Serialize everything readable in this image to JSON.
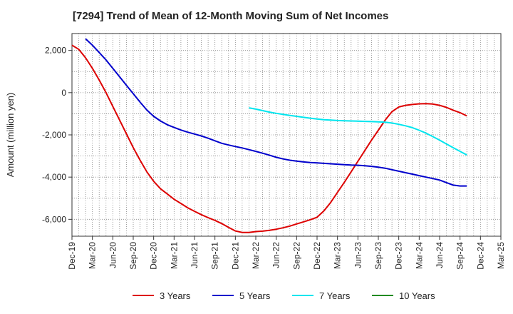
{
  "chart_data": {
    "type": "line",
    "title": "[7294]  Trend of Mean of 12-Month Moving Sum of Net Incomes",
    "xlabel": "",
    "ylabel": "Amount (million yen)",
    "x_range": [
      "2019-12",
      "2025-03"
    ],
    "ylim": [
      -6800,
      2800
    ],
    "y_ticks": [
      {
        "value": 2000,
        "label": "2,000"
      },
      {
        "value": 0,
        "label": "0"
      },
      {
        "value": -2000,
        "label": "-2,000"
      },
      {
        "value": -4000,
        "label": "-4,000"
      },
      {
        "value": -6000,
        "label": "-6,000"
      }
    ],
    "x_ticks": [
      {
        "date": "2019-12",
        "label": "Dec-19"
      },
      {
        "date": "2020-03",
        "label": "Mar-20"
      },
      {
        "date": "2020-06",
        "label": "Jun-20"
      },
      {
        "date": "2020-09",
        "label": "Sep-20"
      },
      {
        "date": "2020-12",
        "label": "Dec-20"
      },
      {
        "date": "2021-03",
        "label": "Mar-21"
      },
      {
        "date": "2021-06",
        "label": "Jun-21"
      },
      {
        "date": "2021-09",
        "label": "Sep-21"
      },
      {
        "date": "2021-12",
        "label": "Dec-21"
      },
      {
        "date": "2022-03",
        "label": "Mar-22"
      },
      {
        "date": "2022-06",
        "label": "Jun-22"
      },
      {
        "date": "2022-09",
        "label": "Sep-22"
      },
      {
        "date": "2022-12",
        "label": "Dec-22"
      },
      {
        "date": "2023-03",
        "label": "Mar-23"
      },
      {
        "date": "2023-06",
        "label": "Jun-23"
      },
      {
        "date": "2023-09",
        "label": "Sep-23"
      },
      {
        "date": "2023-12",
        "label": "Dec-23"
      },
      {
        "date": "2024-03",
        "label": "Mar-24"
      },
      {
        "date": "2024-06",
        "label": "Jun-24"
      },
      {
        "date": "2024-09",
        "label": "Sep-24"
      },
      {
        "date": "2024-12",
        "label": "Dec-24"
      },
      {
        "date": "2025-03",
        "label": "Mar-25"
      }
    ],
    "grid": true,
    "legend_position": "bottom",
    "series": [
      {
        "name": "3 Years",
        "color": "#dd0000",
        "points": [
          [
            "2019-12",
            2250
          ],
          [
            "2020-01",
            2050
          ],
          [
            "2020-02",
            1650
          ],
          [
            "2020-03",
            1150
          ],
          [
            "2020-04",
            600
          ],
          [
            "2020-05",
            0
          ],
          [
            "2020-06",
            -650
          ],
          [
            "2020-07",
            -1300
          ],
          [
            "2020-08",
            -1950
          ],
          [
            "2020-09",
            -2600
          ],
          [
            "2020-10",
            -3200
          ],
          [
            "2020-11",
            -3750
          ],
          [
            "2020-12",
            -4200
          ],
          [
            "2021-01",
            -4550
          ],
          [
            "2021-02",
            -4800
          ],
          [
            "2021-03",
            -5050
          ],
          [
            "2021-04",
            -5250
          ],
          [
            "2021-05",
            -5450
          ],
          [
            "2021-06",
            -5620
          ],
          [
            "2021-07",
            -5780
          ],
          [
            "2021-08",
            -5920
          ],
          [
            "2021-09",
            -6050
          ],
          [
            "2021-10",
            -6200
          ],
          [
            "2021-11",
            -6380
          ],
          [
            "2021-12",
            -6550
          ],
          [
            "2022-01",
            -6620
          ],
          [
            "2022-02",
            -6620
          ],
          [
            "2022-03",
            -6580
          ],
          [
            "2022-04",
            -6560
          ],
          [
            "2022-05",
            -6520
          ],
          [
            "2022-06",
            -6470
          ],
          [
            "2022-07",
            -6400
          ],
          [
            "2022-08",
            -6320
          ],
          [
            "2022-09",
            -6220
          ],
          [
            "2022-10",
            -6120
          ],
          [
            "2022-11",
            -6020
          ],
          [
            "2022-12",
            -5900
          ],
          [
            "2023-01",
            -5600
          ],
          [
            "2023-02",
            -5200
          ],
          [
            "2023-03",
            -4720
          ],
          [
            "2023-04",
            -4250
          ],
          [
            "2023-05",
            -3750
          ],
          [
            "2023-06",
            -3250
          ],
          [
            "2023-07",
            -2750
          ],
          [
            "2023-08",
            -2250
          ],
          [
            "2023-09",
            -1780
          ],
          [
            "2023-10",
            -1300
          ],
          [
            "2023-11",
            -900
          ],
          [
            "2023-12",
            -680
          ],
          [
            "2024-01",
            -600
          ],
          [
            "2024-02",
            -560
          ],
          [
            "2024-03",
            -530
          ],
          [
            "2024-04",
            -520
          ],
          [
            "2024-05",
            -540
          ],
          [
            "2024-06",
            -600
          ],
          [
            "2024-07",
            -700
          ],
          [
            "2024-08",
            -830
          ],
          [
            "2024-09",
            -950
          ],
          [
            "2024-10",
            -1100
          ]
        ]
      },
      {
        "name": "5 Years",
        "color": "#0000cc",
        "points": [
          [
            "2020-02",
            2550
          ],
          [
            "2020-03",
            2250
          ],
          [
            "2020-04",
            1900
          ],
          [
            "2020-05",
            1550
          ],
          [
            "2020-06",
            1150
          ],
          [
            "2020-07",
            750
          ],
          [
            "2020-08",
            350
          ],
          [
            "2020-09",
            -50
          ],
          [
            "2020-10",
            -450
          ],
          [
            "2020-11",
            -820
          ],
          [
            "2020-12",
            -1120
          ],
          [
            "2021-01",
            -1340
          ],
          [
            "2021-02",
            -1520
          ],
          [
            "2021-03",
            -1650
          ],
          [
            "2021-04",
            -1770
          ],
          [
            "2021-05",
            -1870
          ],
          [
            "2021-06",
            -1960
          ],
          [
            "2021-07",
            -2050
          ],
          [
            "2021-08",
            -2160
          ],
          [
            "2021-09",
            -2280
          ],
          [
            "2021-10",
            -2400
          ],
          [
            "2021-11",
            -2480
          ],
          [
            "2021-12",
            -2550
          ],
          [
            "2022-01",
            -2620
          ],
          [
            "2022-02",
            -2700
          ],
          [
            "2022-03",
            -2780
          ],
          [
            "2022-04",
            -2870
          ],
          [
            "2022-05",
            -2960
          ],
          [
            "2022-06",
            -3060
          ],
          [
            "2022-07",
            -3140
          ],
          [
            "2022-08",
            -3200
          ],
          [
            "2022-09",
            -3240
          ],
          [
            "2022-10",
            -3280
          ],
          [
            "2022-11",
            -3310
          ],
          [
            "2022-12",
            -3330
          ],
          [
            "2023-01",
            -3350
          ],
          [
            "2023-02",
            -3370
          ],
          [
            "2023-03",
            -3390
          ],
          [
            "2023-04",
            -3410
          ],
          [
            "2023-05",
            -3430
          ],
          [
            "2023-06",
            -3440
          ],
          [
            "2023-07",
            -3460
          ],
          [
            "2023-08",
            -3490
          ],
          [
            "2023-09",
            -3530
          ],
          [
            "2023-10",
            -3580
          ],
          [
            "2023-11",
            -3650
          ],
          [
            "2023-12",
            -3720
          ],
          [
            "2024-01",
            -3790
          ],
          [
            "2024-02",
            -3860
          ],
          [
            "2024-03",
            -3930
          ],
          [
            "2024-04",
            -4000
          ],
          [
            "2024-05",
            -4070
          ],
          [
            "2024-06",
            -4140
          ],
          [
            "2024-07",
            -4260
          ],
          [
            "2024-08",
            -4380
          ],
          [
            "2024-09",
            -4420
          ],
          [
            "2024-10",
            -4420
          ]
        ]
      },
      {
        "name": "7 Years",
        "color": "#00e5ee",
        "points": [
          [
            "2022-02",
            -720
          ],
          [
            "2022-03",
            -780
          ],
          [
            "2022-04",
            -850
          ],
          [
            "2022-05",
            -920
          ],
          [
            "2022-06",
            -980
          ],
          [
            "2022-07",
            -1030
          ],
          [
            "2022-08",
            -1080
          ],
          [
            "2022-09",
            -1120
          ],
          [
            "2022-10",
            -1170
          ],
          [
            "2022-11",
            -1210
          ],
          [
            "2022-12",
            -1250
          ],
          [
            "2023-01",
            -1280
          ],
          [
            "2023-02",
            -1300
          ],
          [
            "2023-03",
            -1320
          ],
          [
            "2023-04",
            -1330
          ],
          [
            "2023-05",
            -1340
          ],
          [
            "2023-06",
            -1350
          ],
          [
            "2023-07",
            -1360
          ],
          [
            "2023-08",
            -1370
          ],
          [
            "2023-09",
            -1380
          ],
          [
            "2023-10",
            -1400
          ],
          [
            "2023-11",
            -1440
          ],
          [
            "2023-12",
            -1500
          ],
          [
            "2024-01",
            -1570
          ],
          [
            "2024-02",
            -1660
          ],
          [
            "2024-03",
            -1780
          ],
          [
            "2024-04",
            -1920
          ],
          [
            "2024-05",
            -2080
          ],
          [
            "2024-06",
            -2250
          ],
          [
            "2024-07",
            -2430
          ],
          [
            "2024-08",
            -2610
          ],
          [
            "2024-09",
            -2780
          ],
          [
            "2024-10",
            -2950
          ]
        ]
      },
      {
        "name": "10 Years",
        "color": "#228b22",
        "points": []
      }
    ]
  }
}
